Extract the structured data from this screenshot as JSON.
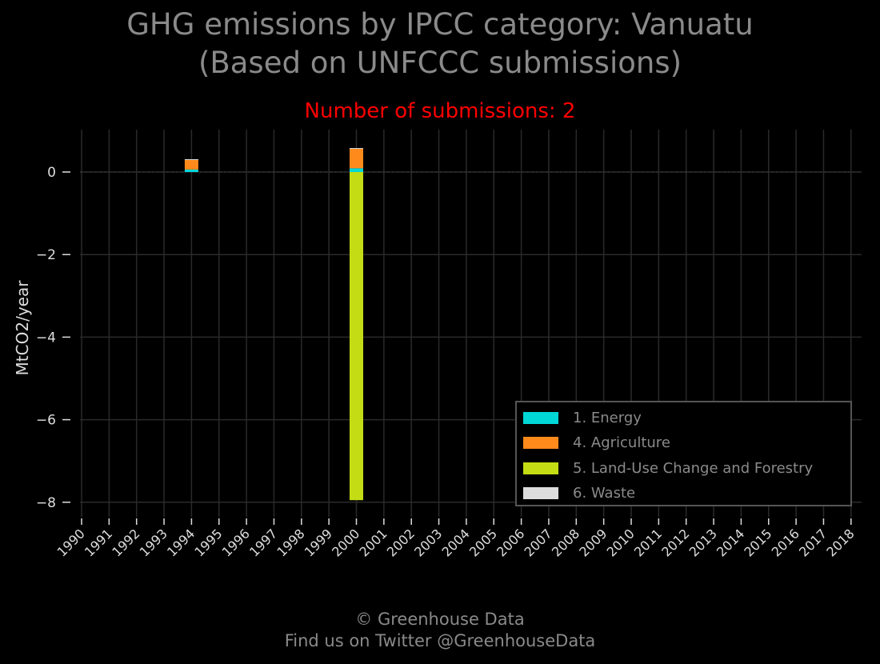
{
  "title_line1": "GHG emissions by IPCC category: Vanuatu",
  "title_line2": "(Based on UNFCCC submissions)",
  "subtitle": "Number of submissions: 2",
  "footer_line1": "© Greenhouse Data",
  "footer_line2": "Find us on Twitter @GreenhouseData",
  "colors": {
    "background": "#000000",
    "grid": "#2a2a2a",
    "title": "#8a8a8a",
    "subtitle": "#ff0000",
    "axis_text": "#dddddd"
  },
  "chart_data": {
    "type": "bar",
    "stacked": true,
    "ylabel": "MtCO2/year",
    "ylim": [
      -8.3,
      1.0
    ],
    "yticks": [
      0,
      -2,
      -4,
      -6,
      -8
    ],
    "ytick_labels": [
      "0",
      "−2",
      "−4",
      "−6",
      "−8"
    ],
    "categories": [
      "1990",
      "1991",
      "1992",
      "1993",
      "1994",
      "1995",
      "1996",
      "1997",
      "1998",
      "1999",
      "2000",
      "2001",
      "2002",
      "2003",
      "2004",
      "2005",
      "2006",
      "2007",
      "2008",
      "2009",
      "2010",
      "2011",
      "2012",
      "2013",
      "2014",
      "2015",
      "2016",
      "2017",
      "2018"
    ],
    "grid": true,
    "legend_position": "lower right",
    "series": [
      {
        "name": "1. Energy",
        "color": "#00d7d7",
        "values": [
          0,
          0,
          0,
          0,
          0.06,
          0,
          0,
          0,
          0,
          0,
          0.09,
          0,
          0,
          0,
          0,
          0,
          0,
          0,
          0,
          0,
          0,
          0,
          0,
          0,
          0,
          0,
          0,
          0,
          0
        ]
      },
      {
        "name": "4. Agriculture",
        "color": "#ff8a1c",
        "values": [
          0,
          0,
          0,
          0,
          0.24,
          0,
          0,
          0,
          0,
          0,
          0.48,
          0,
          0,
          0,
          0,
          0,
          0,
          0,
          0,
          0,
          0,
          0,
          0,
          0,
          0,
          0,
          0,
          0,
          0
        ]
      },
      {
        "name": "5. Land-Use Change and Forestry",
        "color": "#c4dc14",
        "values": [
          0,
          0,
          0,
          0,
          0,
          0,
          0,
          0,
          0,
          0,
          -7.95,
          0,
          0,
          0,
          0,
          0,
          0,
          0,
          0,
          0,
          0,
          0,
          0,
          0,
          0,
          0,
          0,
          0,
          0
        ]
      },
      {
        "name": "6. Waste",
        "color": "#dddddd",
        "values": [
          0,
          0,
          0,
          0,
          0.01,
          0,
          0,
          0,
          0,
          0,
          0.01,
          0,
          0,
          0,
          0,
          0,
          0,
          0,
          0,
          0,
          0,
          0,
          0,
          0,
          0,
          0,
          0,
          0,
          0
        ]
      }
    ]
  }
}
